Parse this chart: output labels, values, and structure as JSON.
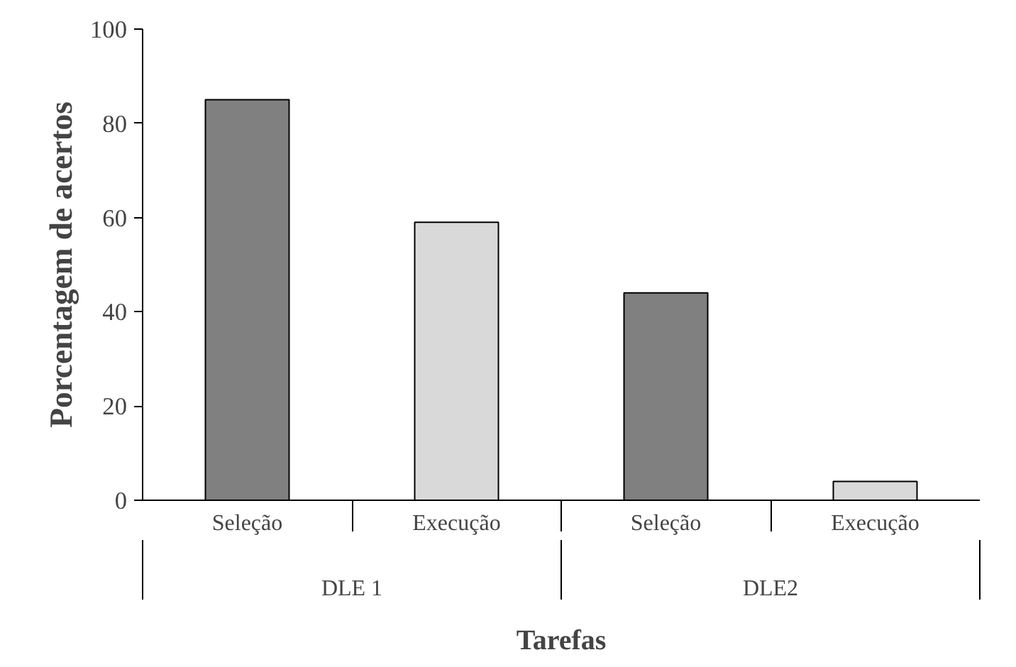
{
  "chart_data": {
    "type": "bar",
    "categories": [
      "Seleção",
      "Execução",
      "Seleção",
      "Execução"
    ],
    "values": [
      85,
      59,
      44,
      4
    ],
    "colors": [
      "#808080",
      "#d9d9d9",
      "#808080",
      "#d9d9d9"
    ],
    "ylim": [
      0,
      100
    ],
    "yticks": [
      0,
      20,
      40,
      60,
      80,
      100
    ],
    "grid": false,
    "xlabel": "Tarefas",
    "ylabel": "Porcentagem de acertos",
    "annotations": [
      "DLE 1",
      "DLE2"
    ]
  }
}
